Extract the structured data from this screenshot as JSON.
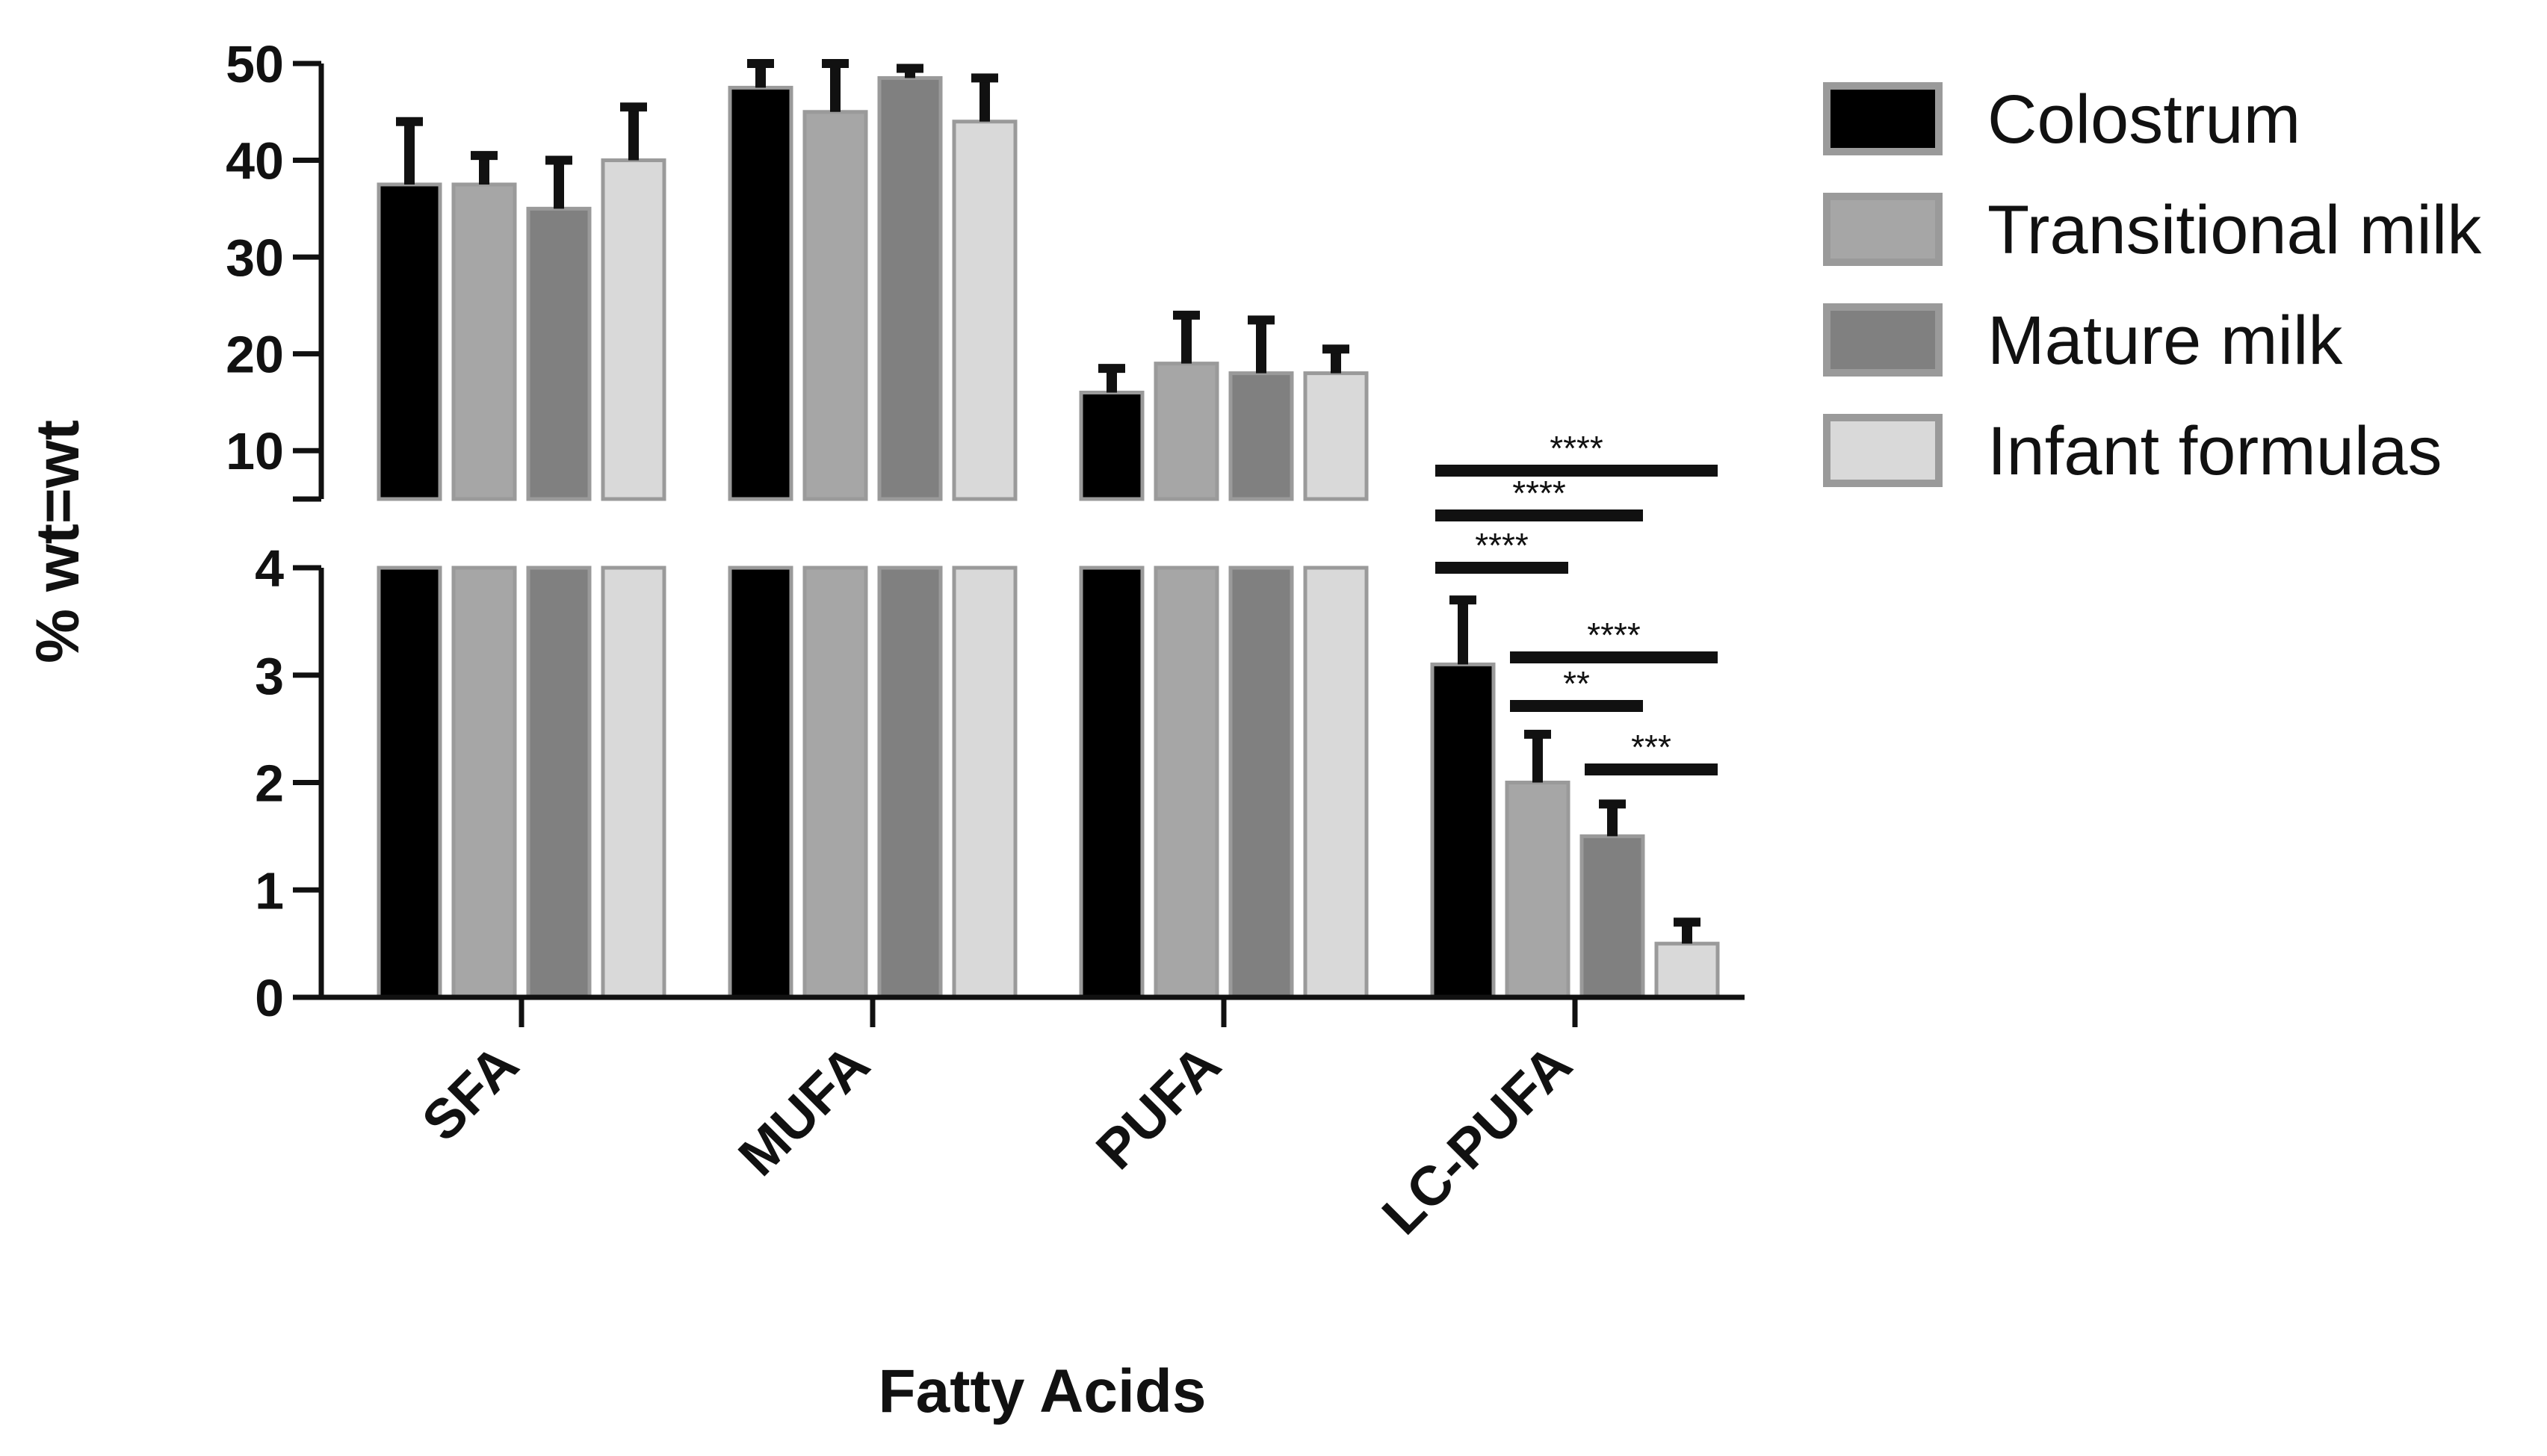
{
  "chart_data": {
    "type": "bar",
    "xlabel": "Fatty Acids",
    "ylabel": "% wt=wt",
    "categories": [
      "SFA",
      "MUFA",
      "PUFA",
      "LC-PUFA"
    ],
    "series": [
      {
        "name": "Colostrum",
        "color": "#000000",
        "values": [
          37.5,
          47.5,
          16.0,
          3.1
        ],
        "errors": [
          6.5,
          2.5,
          2.5,
          0.6
        ]
      },
      {
        "name": "Transitional milk",
        "color": "#a6a6a6",
        "values": [
          37.5,
          45.0,
          19.0,
          2.0
        ],
        "errors": [
          3.0,
          5.0,
          5.0,
          0.45
        ]
      },
      {
        "name": "Mature milk",
        "color": "#808080",
        "values": [
          35.0,
          48.5,
          18.0,
          1.5
        ],
        "errors": [
          5.0,
          1.0,
          5.5,
          0.3
        ]
      },
      {
        "name": "Infant formulas",
        "color": "#d9d9d9",
        "values": [
          40.0,
          44.0,
          18.0,
          0.5
        ],
        "errors": [
          5.5,
          4.5,
          2.5,
          0.2
        ]
      }
    ],
    "y_axis_segments": [
      {
        "range": [
          0,
          4
        ],
        "ticks": [
          "0",
          "1",
          "2",
          "3",
          "4"
        ]
      },
      {
        "range": [
          5,
          50
        ],
        "ticks": [
          "10",
          "20",
          "30",
          "40",
          "50"
        ]
      }
    ],
    "legend_position": "right",
    "significance": [
      {
        "category": "LC-PUFA",
        "from": "Colostrum",
        "to": "Infant formulas",
        "label": "****"
      },
      {
        "category": "LC-PUFA",
        "from": "Colostrum",
        "to": "Mature milk",
        "label": "****"
      },
      {
        "category": "LC-PUFA",
        "from": "Colostrum",
        "to": "Transitional milk",
        "label": "****"
      },
      {
        "category": "LC-PUFA",
        "from": "Transitional milk",
        "to": "Infant formulas",
        "label": "****"
      },
      {
        "category": "LC-PUFA",
        "from": "Transitional milk",
        "to": "Mature milk",
        "label": "**"
      },
      {
        "category": "LC-PUFA",
        "from": "Mature milk",
        "to": "Infant formulas",
        "label": "***"
      }
    ]
  }
}
